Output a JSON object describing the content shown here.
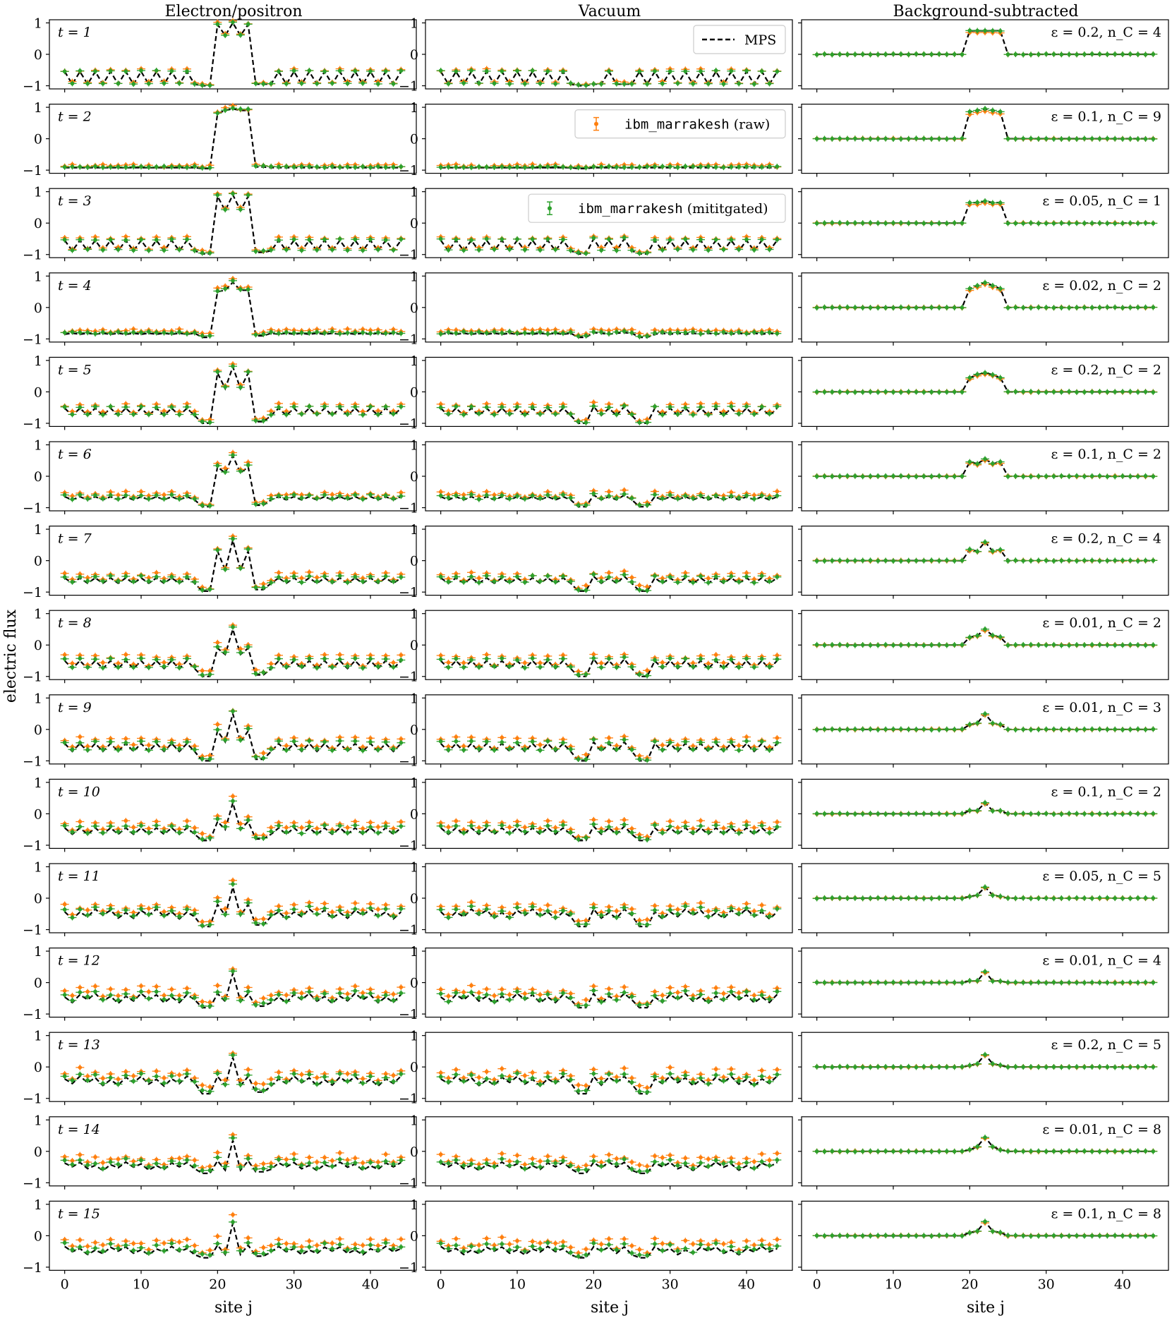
{
  "figure": {
    "ylabel": "electric flux",
    "xlabel": "site j",
    "column_titles": [
      "Electron/positron",
      "Vacuum",
      "Background-subtracted"
    ],
    "yticks": [
      "1",
      "0",
      "−1"
    ],
    "xticks": [
      "0",
      "10",
      "20",
      "30",
      "40"
    ]
  },
  "legend": {
    "mps": "MPS",
    "raw_prefix": "ibm_marrakesh",
    "raw_suffix": " (raw)",
    "mit_prefix": "ibm_marrakesh",
    "mit_suffix": " (mititgated)"
  },
  "colors": {
    "mps": "#000000",
    "raw": "#ff7f0e",
    "mitigated": "#2ca02c"
  },
  "rows": [
    {
      "t": "t = 1",
      "params": "ε = 0.2, n_C = 4"
    },
    {
      "t": "t = 2",
      "params": "ε = 0.1, n_C = 9"
    },
    {
      "t": "t = 3",
      "params": "ε = 0.05, n_C = 1"
    },
    {
      "t": "t = 4",
      "params": "ε = 0.02, n_C = 2"
    },
    {
      "t": "t = 5",
      "params": "ε = 0.2, n_C = 2"
    },
    {
      "t": "t = 6",
      "params": "ε = 0.1, n_C = 2"
    },
    {
      "t": "t = 7",
      "params": "ε = 0.2, n_C = 4"
    },
    {
      "t": "t = 8",
      "params": "ε = 0.01, n_C = 2"
    },
    {
      "t": "t = 9",
      "params": "ε = 0.01, n_C = 3"
    },
    {
      "t": "t = 10",
      "params": "ε = 0.1, n_C = 2"
    },
    {
      "t": "t = 11",
      "params": "ε = 0.05, n_C = 5"
    },
    {
      "t": "t = 12",
      "params": "ε = 0.01, n_C = 4"
    },
    {
      "t": "t = 13",
      "params": "ε = 0.2, n_C = 5"
    },
    {
      "t": "t = 14",
      "params": "ε = 0.01, n_C = 8"
    },
    {
      "t": "t = 15",
      "params": "ε = 0.1, n_C = 8"
    }
  ],
  "chart_data": {
    "type": "line",
    "description": "electric flux vs site j, 15 time steps x 3 columns",
    "x": {
      "min": 0,
      "max": 44,
      "lim": [
        -2,
        46
      ]
    },
    "ylim": [
      -1.1,
      1.1
    ],
    "sites": 45,
    "pair_region": [
      20,
      24
    ],
    "peak_site": 22,
    "series_names": [
      "MPS",
      "ibm_marrakesh (raw)",
      "ibm_marrakesh (mititgated)"
    ],
    "vac": [
      {
        "a": -0.55,
        "b": -0.95,
        "dip": -1.0
      },
      {
        "a": -0.92,
        "b": -0.92,
        "dip": -0.95
      },
      {
        "a": -0.55,
        "b": -0.88,
        "dip": -0.98
      },
      {
        "a": -0.85,
        "b": -0.82,
        "dip": -0.95
      },
      {
        "a": -0.52,
        "b": -0.75,
        "dip": -1.0
      },
      {
        "a": -0.65,
        "b": -0.75,
        "dip": -0.97
      },
      {
        "a": -0.55,
        "b": -0.72,
        "dip": -0.97
      },
      {
        "a": -0.5,
        "b": -0.75,
        "dip": -1.0
      },
      {
        "a": -0.45,
        "b": -0.7,
        "dip": -1.0
      },
      {
        "a": -0.45,
        "b": -0.65,
        "dip": -0.85
      },
      {
        "a": -0.4,
        "b": -0.6,
        "dip": -0.9
      },
      {
        "a": -0.4,
        "b": -0.6,
        "dip": -0.8
      },
      {
        "a": -0.35,
        "b": -0.55,
        "dip": -0.85
      },
      {
        "a": -0.4,
        "b": -0.55,
        "dip": -0.7
      },
      {
        "a": -0.4,
        "b": -0.55,
        "dip": -0.7
      }
    ],
    "pair": [
      [
        0.95,
        0.6,
        1.0,
        0.6,
        0.95
      ],
      [
        0.8,
        0.9,
        0.95,
        0.9,
        0.9
      ],
      [
        0.85,
        0.4,
        0.9,
        0.4,
        0.85
      ],
      [
        0.5,
        0.55,
        0.8,
        0.55,
        0.55
      ],
      [
        0.6,
        0.1,
        0.8,
        0.1,
        0.6
      ],
      [
        0.3,
        0.1,
        0.65,
        0.1,
        0.3
      ],
      [
        0.3,
        -0.3,
        0.65,
        -0.3,
        0.3
      ],
      [
        -0.1,
        -0.3,
        0.5,
        -0.3,
        -0.1
      ],
      [
        -0.05,
        -0.4,
        0.5,
        -0.4,
        -0.05
      ],
      [
        -0.25,
        -0.5,
        0.35,
        -0.5,
        -0.25
      ],
      [
        -0.2,
        -0.55,
        0.35,
        -0.55,
        -0.2
      ],
      [
        -0.35,
        -0.6,
        0.3,
        -0.6,
        -0.35
      ],
      [
        -0.3,
        -0.6,
        0.3,
        -0.6,
        -0.3
      ],
      [
        -0.3,
        -0.6,
        0.35,
        -0.6,
        -0.3
      ],
      [
        -0.3,
        -0.6,
        0.4,
        -0.6,
        -0.3
      ]
    ],
    "sub": [
      [
        0.75,
        0.75,
        0.75,
        0.75,
        0.75
      ],
      [
        0.85,
        0.9,
        0.95,
        0.9,
        0.85
      ],
      [
        0.65,
        0.65,
        0.7,
        0.65,
        0.65
      ],
      [
        0.6,
        0.7,
        0.8,
        0.7,
        0.6
      ],
      [
        0.45,
        0.55,
        0.6,
        0.55,
        0.45
      ],
      [
        0.45,
        0.4,
        0.55,
        0.4,
        0.45
      ],
      [
        0.35,
        0.3,
        0.6,
        0.3,
        0.35
      ],
      [
        0.25,
        0.3,
        0.5,
        0.3,
        0.25
      ],
      [
        0.15,
        0.2,
        0.5,
        0.2,
        0.15
      ],
      [
        0.1,
        0.1,
        0.35,
        0.1,
        0.1
      ],
      [
        0.05,
        0.1,
        0.35,
        0.1,
        0.05
      ],
      [
        0.05,
        0.05,
        0.35,
        0.05,
        0.05
      ],
      [
        0.05,
        0.1,
        0.4,
        0.1,
        0.05
      ],
      [
        0.05,
        0.15,
        0.45,
        0.15,
        0.05
      ],
      [
        0.1,
        0.15,
        0.45,
        0.15,
        0.1
      ]
    ]
  }
}
